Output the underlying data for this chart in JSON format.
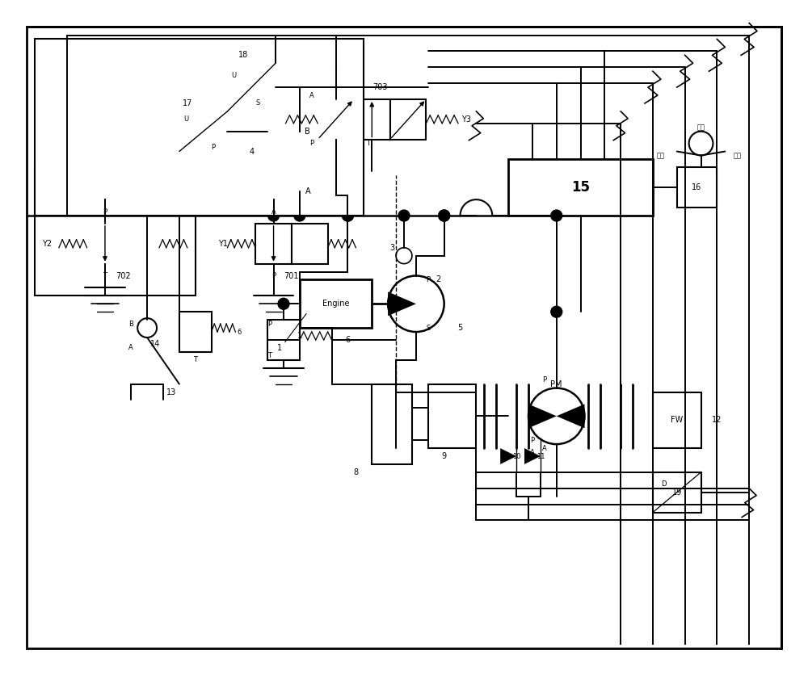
{
  "bg_color": "#ffffff",
  "lc": "#000000",
  "lw": 1.4,
  "fig_w": 10.0,
  "fig_h": 8.36,
  "xlim": [
    0,
    100
  ],
  "ylim": [
    0,
    83.6
  ]
}
